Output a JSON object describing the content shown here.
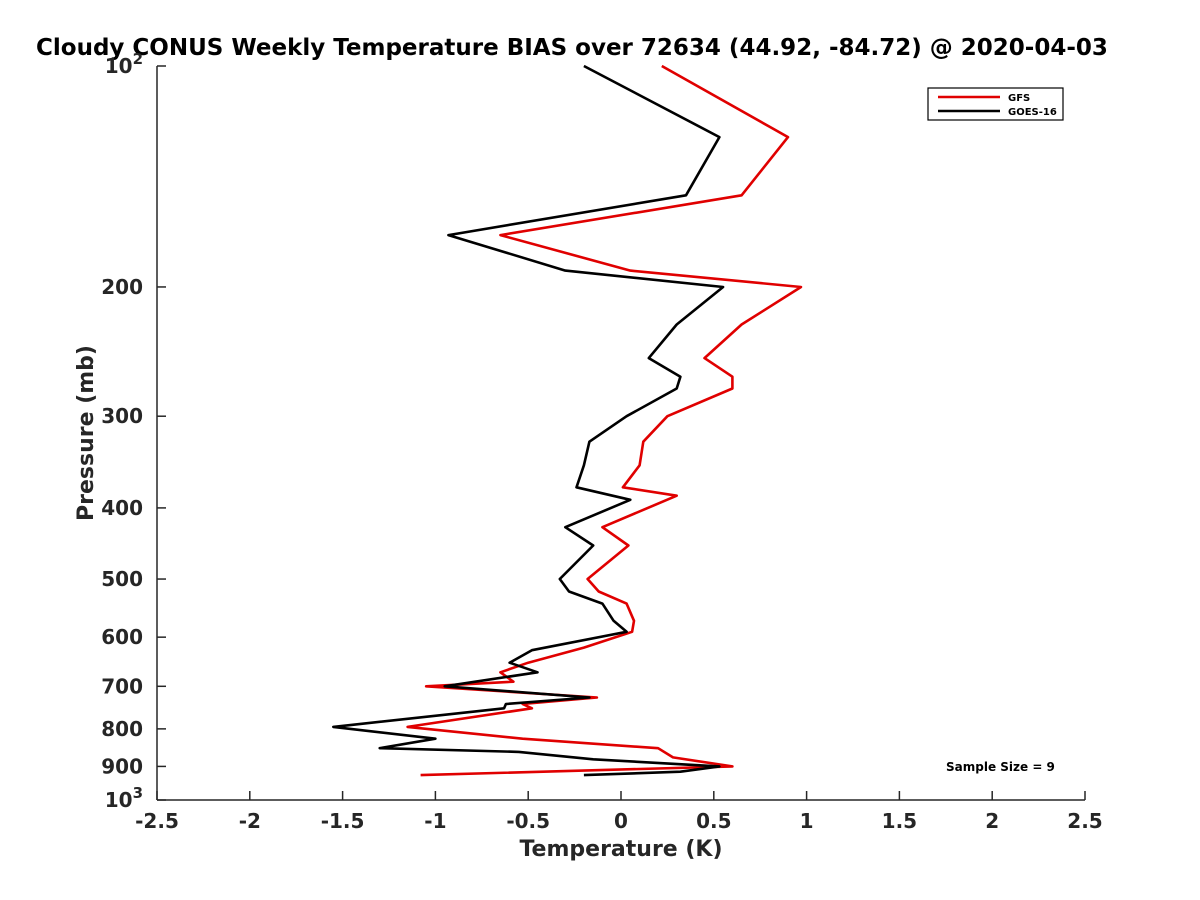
{
  "chart_data": {
    "type": "line",
    "title": "Cloudy CONUS Weekly Temperature BIAS over 72634 (44.92, -84.72) @ 2020-04-03",
    "xlabel": "Temperature (K)",
    "ylabel": "Pressure (mb)",
    "xlim": [
      -2.5,
      2.5
    ],
    "ylim": [
      100,
      1000
    ],
    "y_scale": "log",
    "y_reversed": true,
    "grid": false,
    "legend_position": "top-right",
    "x_ticks": [
      "-2.5",
      "-2",
      "-1.5",
      "-1",
      "-0.5",
      "0",
      "0.5",
      "1",
      "1.5",
      "2",
      "2.5"
    ],
    "x_tick_values": [
      -2.5,
      -2,
      -1.5,
      -1,
      -0.5,
      0,
      0.5,
      1,
      1.5,
      2,
      2.5
    ],
    "y_ticks": [
      {
        "value": 100,
        "base": "10",
        "exp": "2"
      },
      {
        "value": 200,
        "base": "200"
      },
      {
        "value": 300,
        "base": "300"
      },
      {
        "value": 400,
        "base": "400"
      },
      {
        "value": 500,
        "base": "500"
      },
      {
        "value": 600,
        "base": "600"
      },
      {
        "value": 700,
        "base": "700"
      },
      {
        "value": 800,
        "base": "800"
      },
      {
        "value": 900,
        "base": "900"
      },
      {
        "value": 1000,
        "base": "10",
        "exp": "3"
      }
    ],
    "annotation": "Sample Size = 9",
    "series": [
      {
        "name": "GFS",
        "color": "#e00000",
        "points": [
          [
            0.22,
            100
          ],
          [
            0.9,
            125
          ],
          [
            0.65,
            150
          ],
          [
            -0.65,
            170
          ],
          [
            0.05,
            190
          ],
          [
            0.97,
            200
          ],
          [
            0.65,
            225
          ],
          [
            0.45,
            250
          ],
          [
            0.6,
            265
          ],
          [
            0.6,
            275
          ],
          [
            0.25,
            300
          ],
          [
            0.12,
            325
          ],
          [
            0.1,
            350
          ],
          [
            0.01,
            375
          ],
          [
            0.3,
            385
          ],
          [
            -0.1,
            425
          ],
          [
            0.04,
            450
          ],
          [
            -0.18,
            500
          ],
          [
            -0.12,
            520
          ],
          [
            0.03,
            540
          ],
          [
            0.07,
            570
          ],
          [
            0.06,
            590
          ],
          [
            -0.2,
            620
          ],
          [
            -0.5,
            650
          ],
          [
            -0.65,
            670
          ],
          [
            -0.58,
            690
          ],
          [
            -1.05,
            700
          ],
          [
            -0.13,
            725
          ],
          [
            -0.53,
            740
          ],
          [
            -0.48,
            750
          ],
          [
            -1.15,
            795
          ],
          [
            -0.53,
            825
          ],
          [
            0.2,
            850
          ],
          [
            0.28,
            875
          ],
          [
            0.6,
            900
          ],
          [
            -1.08,
            925
          ]
        ]
      },
      {
        "name": "GOES-16",
        "color": "#000000",
        "points": [
          [
            -0.2,
            100
          ],
          [
            0.53,
            125
          ],
          [
            0.35,
            150
          ],
          [
            -0.93,
            170
          ],
          [
            -0.3,
            190
          ],
          [
            0.55,
            200
          ],
          [
            0.3,
            225
          ],
          [
            0.15,
            250
          ],
          [
            0.32,
            265
          ],
          [
            0.3,
            275
          ],
          [
            0.03,
            300
          ],
          [
            -0.17,
            325
          ],
          [
            -0.2,
            350
          ],
          [
            -0.24,
            375
          ],
          [
            0.05,
            390
          ],
          [
            -0.3,
            425
          ],
          [
            -0.15,
            450
          ],
          [
            -0.33,
            500
          ],
          [
            -0.28,
            520
          ],
          [
            -0.1,
            540
          ],
          [
            -0.04,
            570
          ],
          [
            0.03,
            590
          ],
          [
            -0.48,
            625
          ],
          [
            -0.6,
            650
          ],
          [
            -0.45,
            670
          ],
          [
            -0.95,
            700
          ],
          [
            -0.17,
            725
          ],
          [
            -0.62,
            740
          ],
          [
            -0.63,
            750
          ],
          [
            -1.55,
            795
          ],
          [
            -1.0,
            825
          ],
          [
            -1.3,
            850
          ],
          [
            -0.55,
            860
          ],
          [
            -0.15,
            880
          ],
          [
            0.53,
            900
          ],
          [
            0.32,
            915
          ],
          [
            -0.2,
            925
          ]
        ]
      }
    ]
  }
}
